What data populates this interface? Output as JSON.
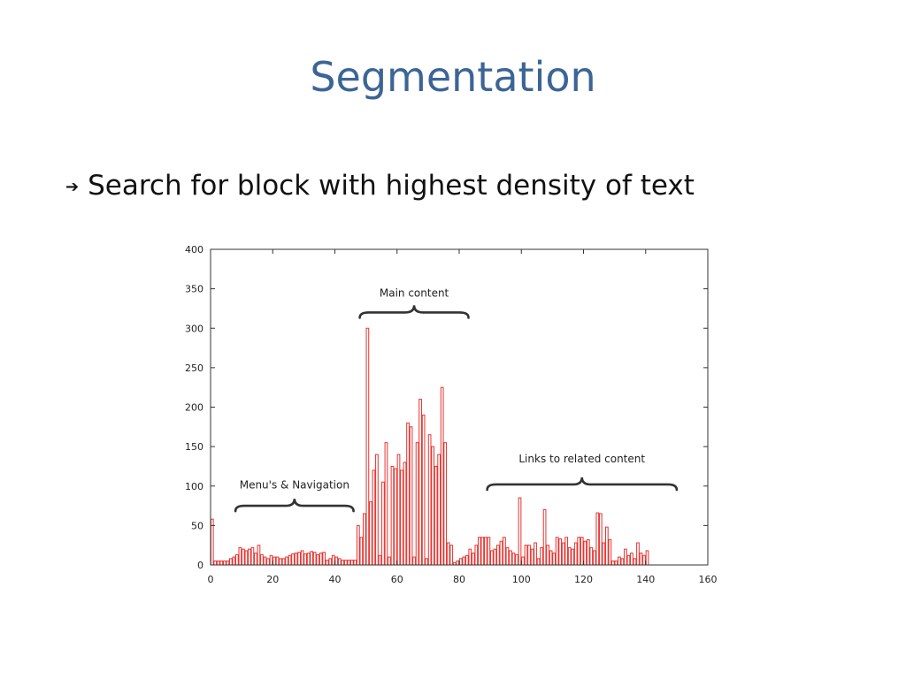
{
  "slide": {
    "title": "Segmentation",
    "bullet_icon": "arrow-right-icon",
    "bullet_text": "Search for block with highest density of text"
  },
  "colors": {
    "title": "#3c6596",
    "bar": "#e8332f",
    "axis": "#333333"
  },
  "chart_data": {
    "type": "bar",
    "xlim": [
      0,
      160
    ],
    "ylim": [
      0,
      400
    ],
    "xticks": [
      0,
      20,
      40,
      60,
      80,
      100,
      120,
      140,
      160
    ],
    "yticks": [
      0,
      50,
      100,
      150,
      200,
      250,
      300,
      350,
      400
    ],
    "grid": false,
    "bar_width": 1,
    "values": [
      58,
      5,
      5,
      5,
      5,
      5,
      8,
      10,
      13,
      22,
      20,
      18,
      20,
      22,
      15,
      25,
      13,
      10,
      8,
      12,
      10,
      10,
      8,
      8,
      10,
      12,
      14,
      15,
      16,
      18,
      14,
      15,
      17,
      16,
      13,
      15,
      16,
      6,
      8,
      12,
      10,
      8,
      6,
      6,
      6,
      6,
      6,
      50,
      35,
      65,
      300,
      80,
      120,
      140,
      12,
      105,
      155,
      10,
      125,
      122,
      140,
      120,
      130,
      180,
      175,
      10,
      155,
      210,
      190,
      8,
      165,
      150,
      125,
      140,
      225,
      155,
      28,
      25,
      3,
      5,
      8,
      10,
      12,
      20,
      15,
      25,
      35,
      35,
      35,
      35,
      18,
      20,
      25,
      30,
      35,
      22,
      18,
      15,
      13,
      85,
      10,
      25,
      25,
      20,
      28,
      8,
      22,
      70,
      25,
      18,
      15,
      35,
      33,
      28,
      35,
      22,
      20,
      28,
      35,
      35,
      30,
      32,
      22,
      18,
      66,
      65,
      28,
      48,
      32,
      5,
      5,
      10,
      8,
      20,
      12,
      15,
      8,
      28,
      15,
      12,
      18
    ],
    "annotations": [
      {
        "text": "Menu's & Navigation",
        "from": 8,
        "to": 46,
        "brace_y": 75,
        "label_y": 97
      },
      {
        "text": "Main content",
        "from": 48,
        "to": 83,
        "brace_y": 320,
        "label_y": 340
      },
      {
        "text": "Links to related content",
        "from": 89,
        "to": 150,
        "brace_y": 102,
        "label_y": 130
      }
    ]
  }
}
